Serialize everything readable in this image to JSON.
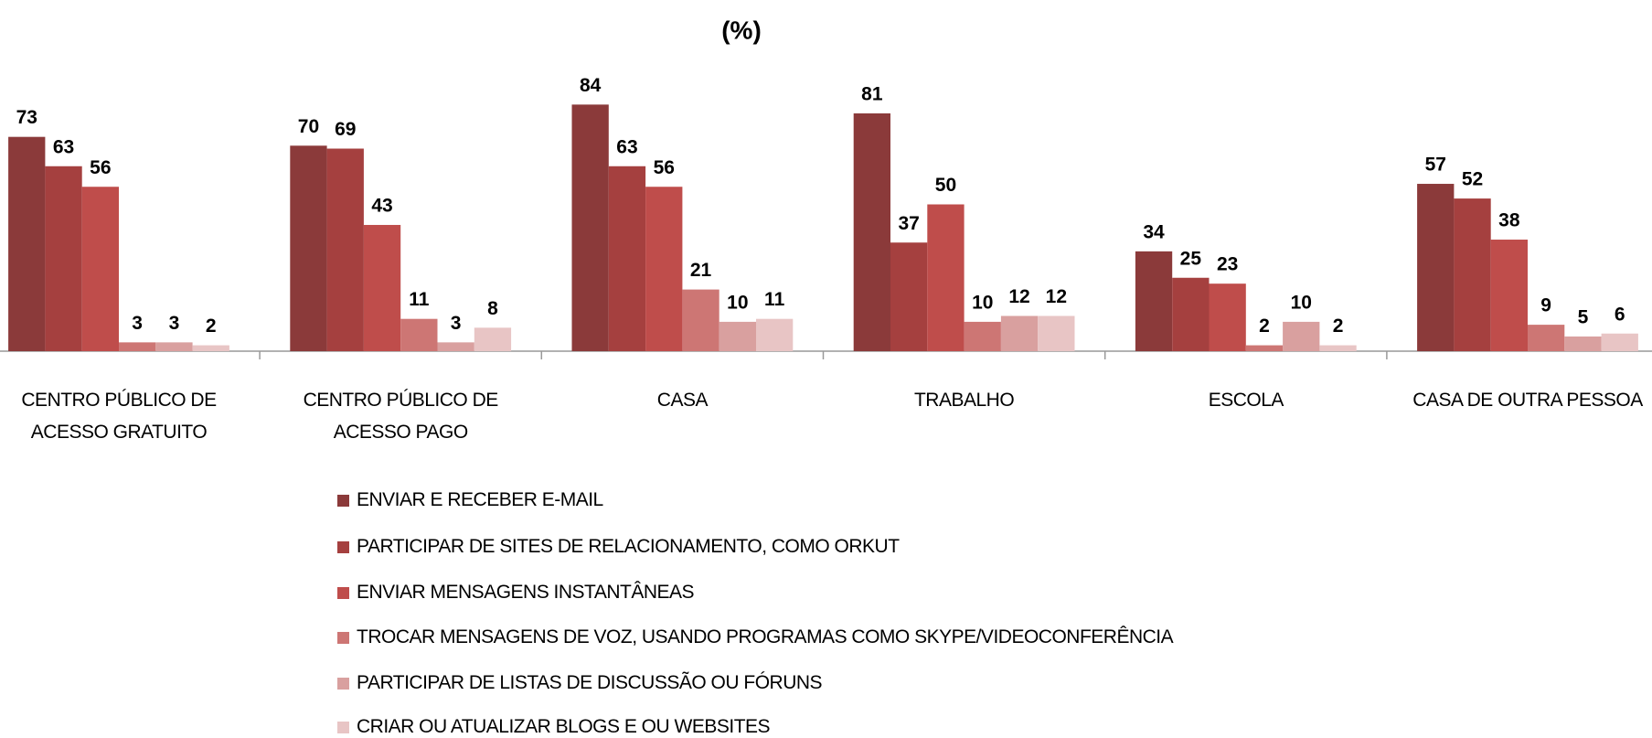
{
  "chart_data": {
    "type": "bar",
    "title": "(%)",
    "categories": [
      "CENTRO PÚBLICO DE\nACESSO GRATUITO",
      "CENTRO PÚBLICO DE\nACESSO PAGO",
      "CASA",
      "TRABALHO",
      "ESCOLA",
      "CASA DE OUTRA PESSOA"
    ],
    "series": [
      {
        "name": "ENVIAR E RECEBER E-MAIL",
        "color": "#8b3a3a",
        "values": [
          73,
          70,
          84,
          81,
          34,
          57
        ]
      },
      {
        "name": "PARTICIPAR DE SITES DE RELACIONAMENTO, COMO ORKUT",
        "color": "#a5403f",
        "values": [
          63,
          69,
          63,
          37,
          25,
          52
        ]
      },
      {
        "name": "ENVIAR MENSAGENS INSTANTÂNEAS",
        "color": "#bf4d4b",
        "values": [
          56,
          43,
          56,
          50,
          23,
          38
        ]
      },
      {
        "name": "TROCAR MENSAGENS DE VOZ, USANDO PROGRAMAS COMO SKYPE/VIDEOCONFERÊNCIA",
        "color": "#cd7674",
        "values": [
          3,
          11,
          21,
          10,
          2,
          9
        ]
      },
      {
        "name": "PARTICIPAR DE LISTAS DE DISCUSSÃO OU FÓRUNS",
        "color": "#d9a09f",
        "values": [
          3,
          3,
          10,
          12,
          10,
          5
        ]
      },
      {
        "name": "CRIAR OU ATUALIZAR BLOGS E OU WEBSITES",
        "color": "#e8c5c5",
        "values": [
          2,
          8,
          11,
          12,
          2,
          6
        ]
      }
    ]
  }
}
